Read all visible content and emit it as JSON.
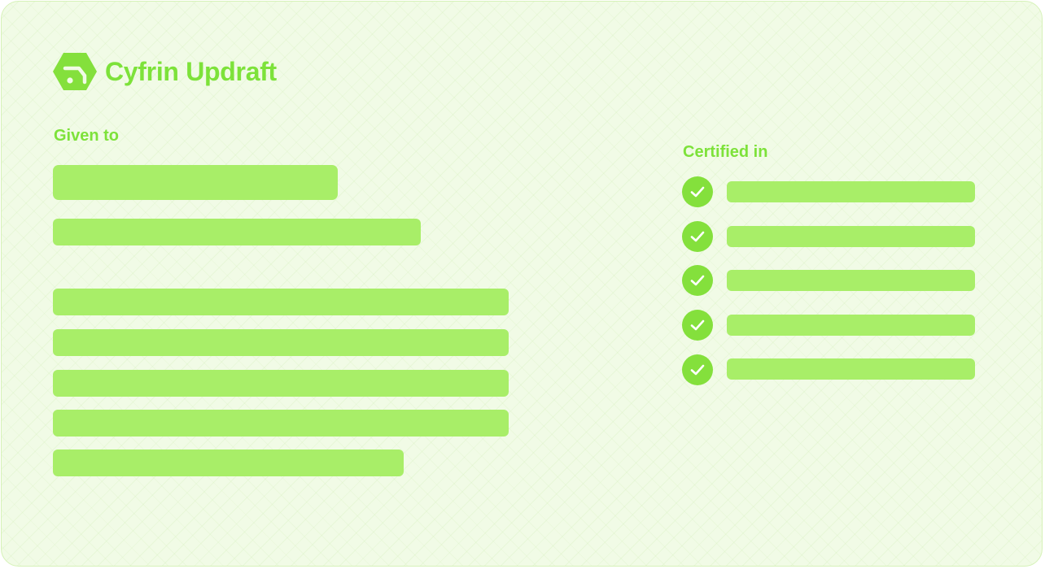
{
  "brand": {
    "name": "Cyfrin Updraft",
    "logo_icon": "cyfrin-hexagon-logo",
    "color": "#7de23a"
  },
  "recipient": {
    "label": "Given to"
  },
  "certifications": {
    "label": "Certified in",
    "item_count": 5,
    "check_icon": "check-circle-icon"
  },
  "colors": {
    "background": "#f1fbe6",
    "placeholder_bar": "#a8ee68",
    "check_fill": "#84e03c",
    "accent_text": "#7de23a"
  }
}
